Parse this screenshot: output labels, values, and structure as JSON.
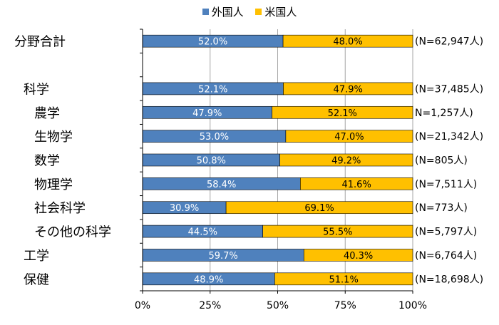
{
  "chart_data": {
    "type": "bar",
    "orientation": "horizontal",
    "stacked": true,
    "percent_scale": true,
    "categories": [
      "分野合計",
      "",
      "科学",
      "農学",
      "生物学",
      "数学",
      "物理学",
      "社会科学",
      "その他の科学",
      "工学",
      "保健"
    ],
    "category_indent": [
      0,
      0,
      1,
      2,
      2,
      2,
      2,
      2,
      2,
      1,
      1
    ],
    "series": [
      {
        "name": "外国人",
        "color": "#4f81bd",
        "values": [
          52.0,
          null,
          52.1,
          47.9,
          53.0,
          50.8,
          58.4,
          30.9,
          44.5,
          59.7,
          48.9
        ],
        "labels": [
          "52.0%",
          "",
          "52.1%",
          "47.9%",
          "53.0%",
          "50.8%",
          "58.4%",
          "30.9%",
          "44.5%",
          "59.7%",
          "48.9%"
        ]
      },
      {
        "name": "米国人",
        "color": "#ffc000",
        "values": [
          48.0,
          null,
          47.9,
          52.1,
          47.0,
          49.2,
          41.6,
          69.1,
          55.5,
          40.3,
          51.1
        ],
        "labels": [
          "48.0%",
          "",
          "47.9%",
          "52.1%",
          "47.0%",
          "49.2%",
          "41.6%",
          "69.1%",
          "55.5%",
          "40.3%",
          "51.1%"
        ]
      }
    ],
    "n_labels": [
      "(N=62,947人)",
      "",
      "(N=37,485人)",
      "N=1,257人)",
      "(N=21,342人)",
      "(N=805人)",
      "(N=7,511人)",
      "(N=773人)",
      "(N=5,797人)",
      "(N=6,764人)",
      "(N=18,698人)"
    ],
    "xlim": [
      0,
      100
    ],
    "xticks": [
      "0%",
      "25%",
      "50%",
      "75%",
      "100%"
    ],
    "grid": true,
    "legend_position": "top"
  }
}
